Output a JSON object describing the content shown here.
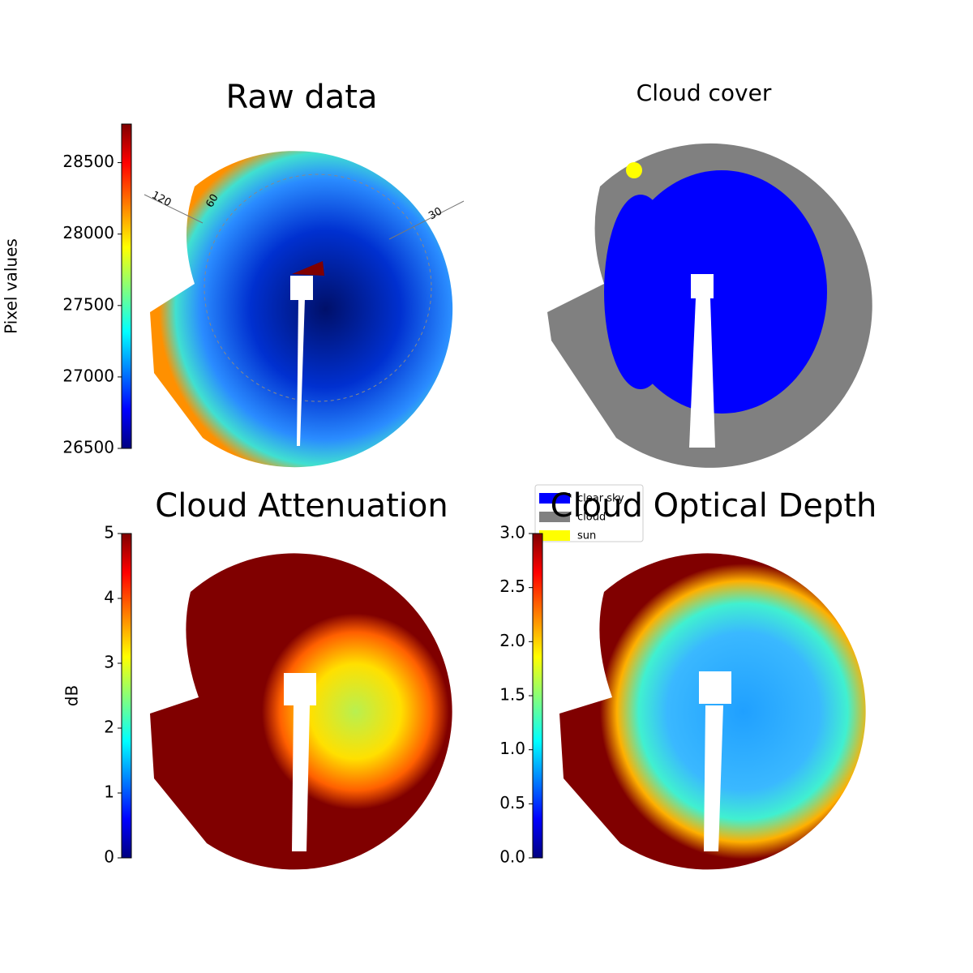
{
  "chart_data": [
    {
      "type": "image",
      "title": "Raw data",
      "colorbar": {
        "label": "Pixel values",
        "lim": [
          26500,
          28770
        ],
        "ticks": [
          26500,
          27000,
          27500,
          28000,
          28500
        ]
      },
      "annotations": [
        "120",
        "60",
        "30"
      ]
    },
    {
      "type": "image",
      "title": "Cloud cover",
      "series": [
        {
          "name": "clear sky",
          "color": "#0000ff"
        },
        {
          "name": "cloud",
          "color": "#808080"
        },
        {
          "name": "sun",
          "color": "#ffff00"
        }
      ]
    },
    {
      "type": "image",
      "title": "Cloud Attenuation",
      "colorbar": {
        "label": "dB",
        "lim": [
          0,
          5
        ],
        "ticks": [
          0,
          1,
          2,
          3,
          4,
          5
        ]
      }
    },
    {
      "type": "image",
      "title": "Cloud Optical Depth",
      "colorbar": {
        "lim": [
          0,
          3
        ],
        "ticks": [
          {
            "value": 0,
            "label": "0.0"
          },
          {
            "value": 0.5,
            "label": "0.5"
          },
          {
            "value": 1,
            "label": "1.0"
          },
          {
            "value": 1.5,
            "label": "1.5"
          },
          {
            "value": 2,
            "label": "2.0"
          },
          {
            "value": 2.5,
            "label": "2.5"
          },
          {
            "value": 3,
            "label": "3.0"
          }
        ]
      }
    }
  ]
}
